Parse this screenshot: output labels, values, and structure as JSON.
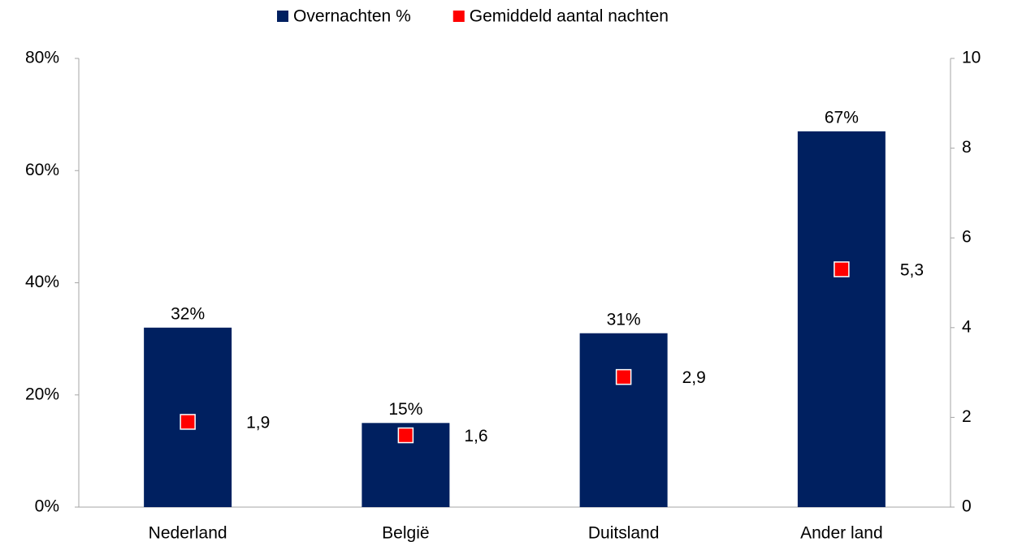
{
  "chart_data": {
    "type": "bar",
    "categories": [
      "Nederland",
      "België",
      "Duitsland",
      "Ander land"
    ],
    "series": [
      {
        "name": "Overnachten %",
        "type": "bar",
        "color": "#002060",
        "values": [
          32,
          15,
          31,
          67
        ],
        "value_labels": [
          "32%",
          "15%",
          "31%",
          "67%"
        ]
      },
      {
        "name": "Gemiddeld aantal nachten",
        "type": "scatter",
        "axis": "y2",
        "color": "#ff0000",
        "values": [
          1.9,
          1.6,
          2.9,
          5.3
        ],
        "value_labels": [
          "1,9",
          "1,6",
          "2,9",
          "5,3"
        ]
      }
    ],
    "ylim": [
      0,
      80
    ],
    "yticks": [
      {
        "value": 0,
        "label": "0%"
      },
      {
        "value": 20,
        "label": "20%"
      },
      {
        "value": 40,
        "label": "40%"
      },
      {
        "value": 60,
        "label": "60%"
      },
      {
        "value": 80,
        "label": "80%"
      }
    ],
    "y2lim": [
      0,
      10
    ],
    "y2ticks": [
      0,
      2,
      4,
      6,
      8,
      10
    ],
    "legend": "top",
    "grid": false
  }
}
